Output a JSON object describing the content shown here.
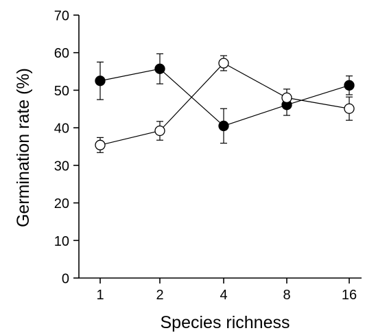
{
  "chart_data": {
    "type": "line",
    "title": "",
    "xlabel": "Species richness",
    "ylabel": "Germination rate (%)",
    "categories": [
      "1",
      "2",
      "4",
      "8",
      "16"
    ],
    "ylim": [
      0,
      70
    ],
    "yticks": [
      0,
      10,
      20,
      30,
      40,
      50,
      60,
      70
    ],
    "grid": false,
    "legend": "none",
    "series": [
      {
        "marker": "filled-circle",
        "color": "#000000",
        "values": [
          52.5,
          55.7,
          40.5,
          46.1,
          51.3
        ],
        "error": [
          5.0,
          4.0,
          4.6,
          2.8,
          2.5
        ]
      },
      {
        "marker": "open-circle",
        "color": "#000000",
        "values": [
          35.4,
          39.2,
          57.2,
          48.0,
          45.1
        ],
        "error": [
          2.0,
          2.5,
          2.0,
          2.3,
          3.1
        ]
      }
    ]
  }
}
